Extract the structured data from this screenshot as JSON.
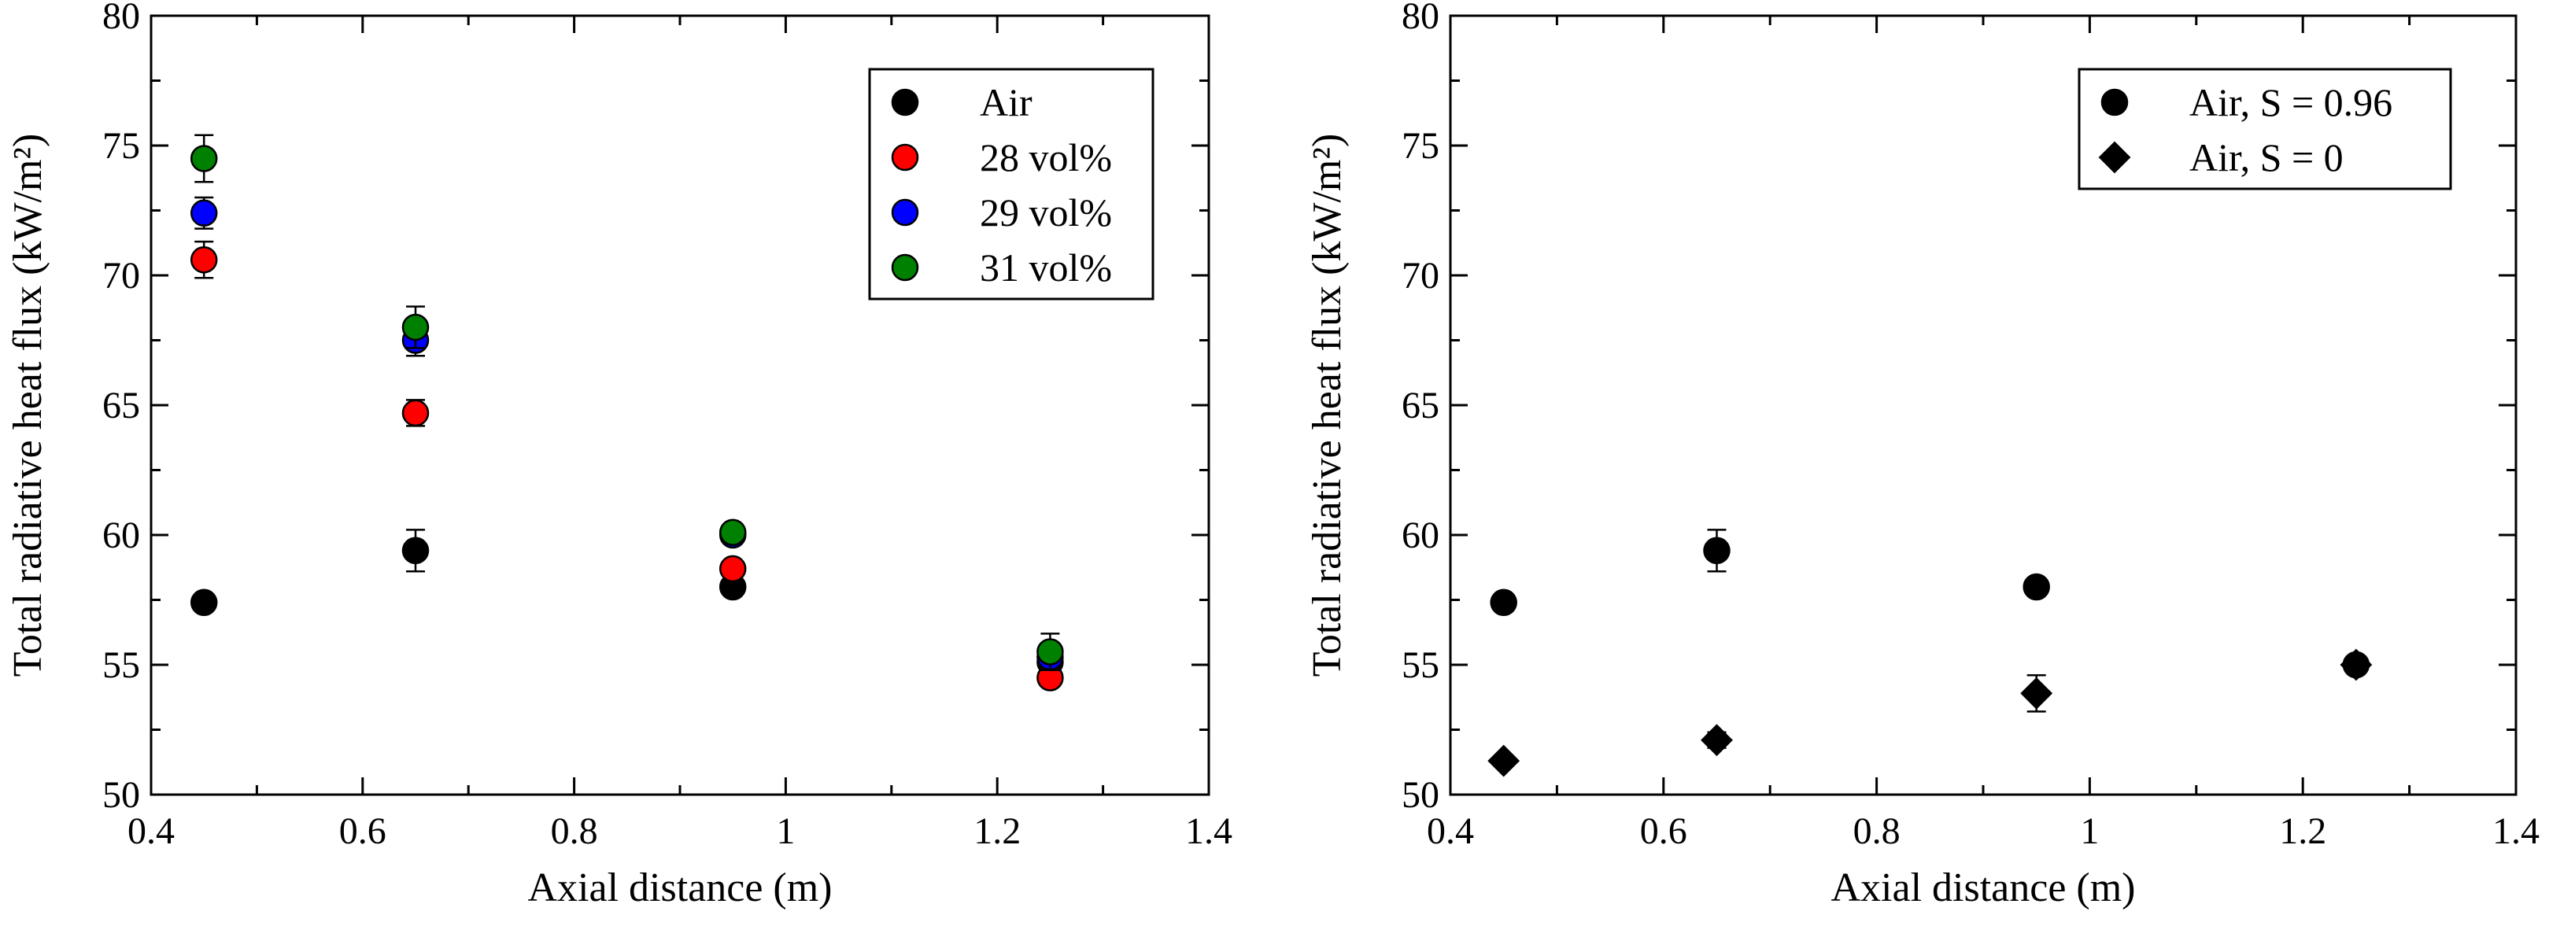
{
  "chart_data": [
    {
      "type": "scatter",
      "xlabel": "Axial distance (m)",
      "ylabel": "Total radiative heat flux (kW/m²)",
      "xlim": [
        0.4,
        1.4
      ],
      "ylim": [
        50,
        80
      ],
      "xticks": [
        0.4,
        0.6,
        0.8,
        1,
        1.2,
        1.4
      ],
      "xtick_labels": [
        "0.4",
        "0.6",
        "0.8",
        "1",
        "1.2",
        "1.4"
      ],
      "yticks": [
        50,
        55,
        60,
        65,
        70,
        75,
        80
      ],
      "ytick_labels": [
        "50",
        "55",
        "60",
        "65",
        "70",
        "75",
        "80"
      ],
      "grid": false,
      "legend_position": "top-right",
      "series": [
        {
          "name": "Air",
          "marker": "circle",
          "color": "#000000",
          "x": [
            0.45,
            0.65,
            0.95,
            1.25
          ],
          "y": [
            57.4,
            59.4,
            58.0,
            55.1
          ],
          "err": [
            0.3,
            0.8,
            0.3,
            0.3
          ]
        },
        {
          "name": "28 vol%",
          "marker": "circle",
          "color": "#ff0000",
          "x": [
            0.45,
            0.65,
            0.95,
            1.25
          ],
          "y": [
            70.6,
            64.7,
            58.7,
            54.5
          ],
          "err": [
            0.7,
            0.5,
            0.3,
            0.3
          ]
        },
        {
          "name": "29 vol%",
          "marker": "circle",
          "color": "#0000ff",
          "x": [
            0.45,
            0.65,
            0.95,
            1.25
          ],
          "y": [
            72.4,
            67.5,
            60.0,
            55.3
          ],
          "err": [
            0.6,
            0.6,
            0.3,
            0.5
          ]
        },
        {
          "name": "31 vol%",
          "marker": "circle",
          "color": "#008000",
          "x": [
            0.45,
            0.65,
            0.95,
            1.25
          ],
          "y": [
            74.5,
            68.0,
            60.1,
            55.5
          ],
          "err": [
            0.9,
            0.8,
            0.3,
            0.7
          ]
        }
      ]
    },
    {
      "type": "scatter",
      "xlabel": "Axial distance (m)",
      "ylabel": "Total radiative heat flux (kW/m²)",
      "xlim": [
        0.4,
        1.4
      ],
      "ylim": [
        50,
        80
      ],
      "xticks": [
        0.4,
        0.6,
        0.8,
        1,
        1.2,
        1.4
      ],
      "xtick_labels": [
        "0.4",
        "0.6",
        "0.8",
        "1",
        "1.2",
        "1.4"
      ],
      "yticks": [
        50,
        55,
        60,
        65,
        70,
        75,
        80
      ],
      "ytick_labels": [
        "50",
        "55",
        "60",
        "65",
        "70",
        "75",
        "80"
      ],
      "grid": false,
      "legend_position": "top-right",
      "series": [
        {
          "name": "Air, S = 0.96",
          "marker": "circle",
          "color": "#000000",
          "x": [
            0.45,
            0.65,
            0.95,
            1.25
          ],
          "y": [
            57.4,
            59.4,
            58.0,
            55.0
          ],
          "err": [
            0.3,
            0.8,
            0.3,
            0.3
          ]
        },
        {
          "name": "Air, S = 0",
          "marker": "diamond",
          "color": "#000000",
          "x": [
            0.45,
            0.65,
            0.95,
            1.25
          ],
          "y": [
            51.3,
            52.1,
            53.9,
            55.0
          ],
          "err": [
            0.2,
            0.3,
            0.7,
            0.2
          ]
        }
      ]
    }
  ]
}
